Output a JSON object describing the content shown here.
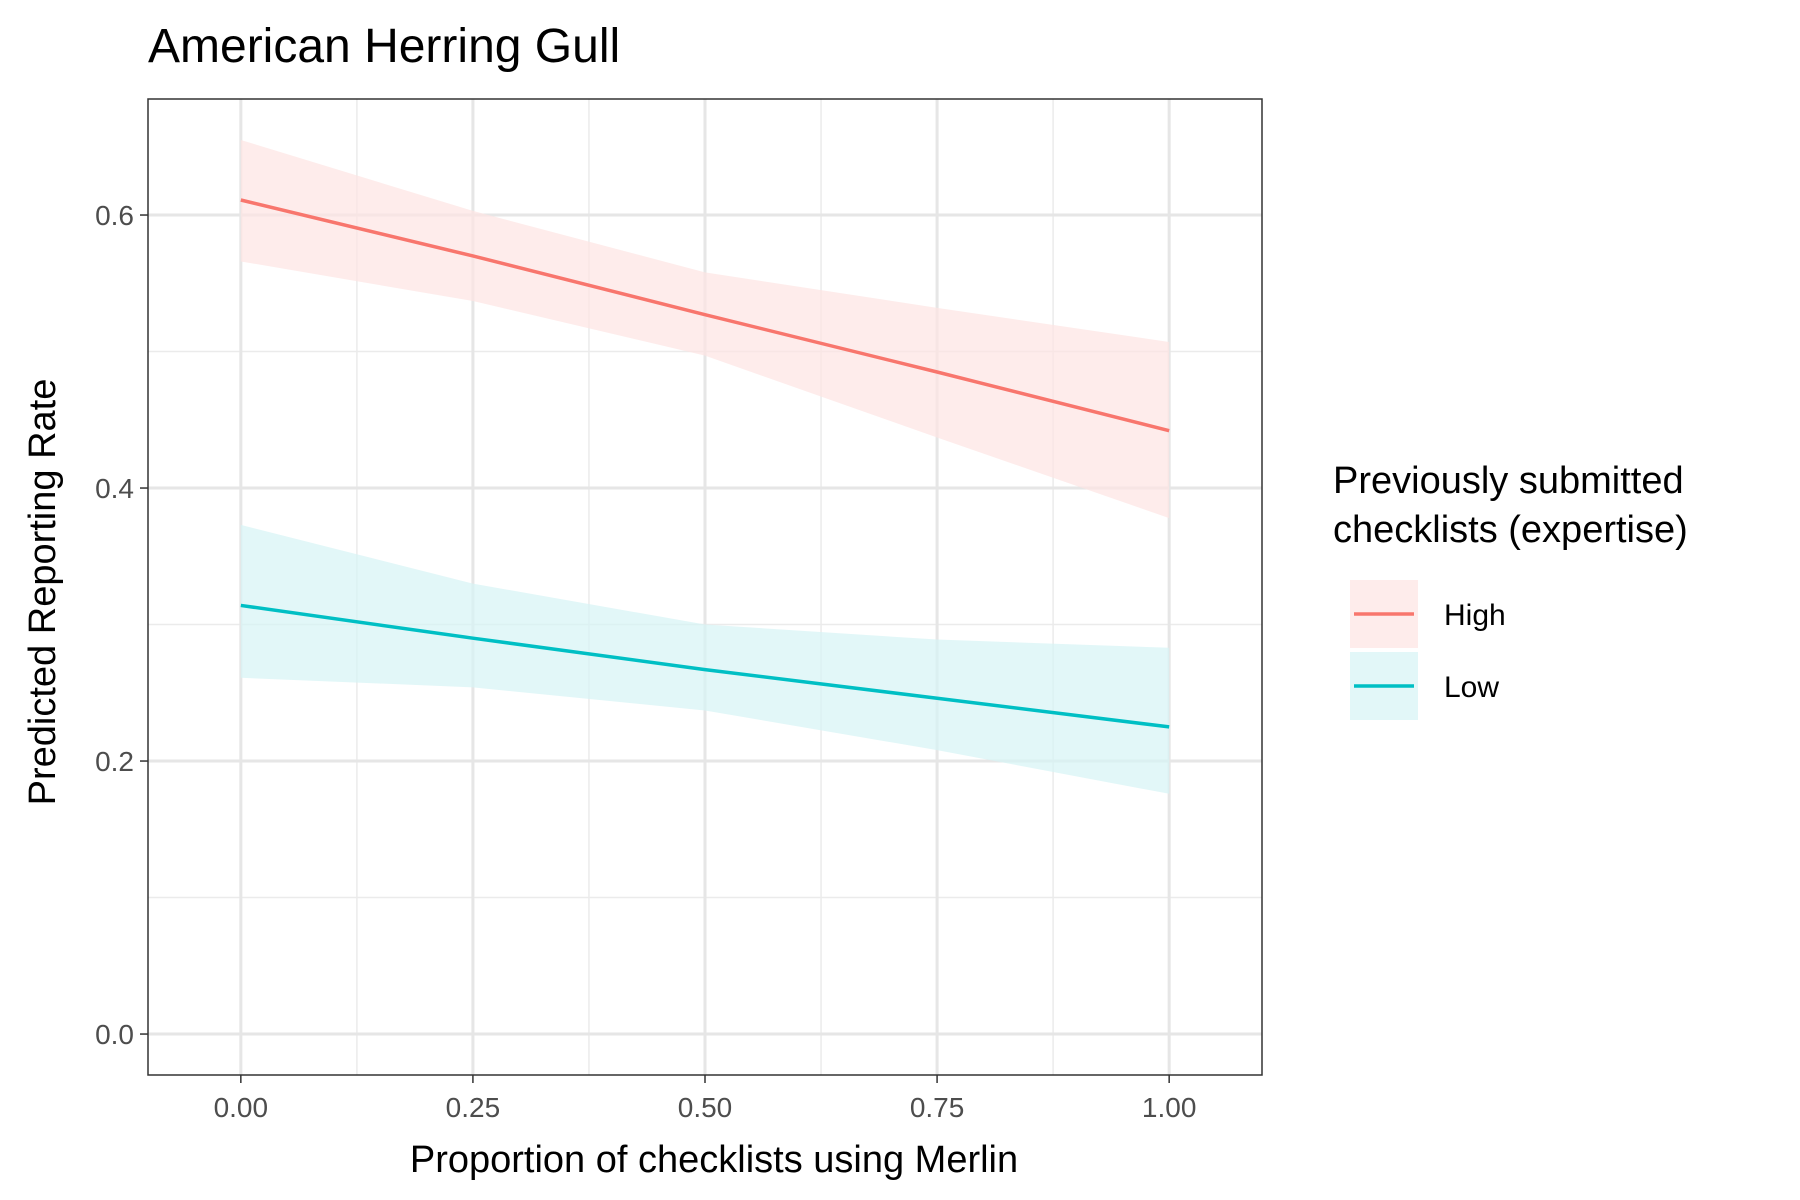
{
  "chart_data": {
    "type": "line",
    "title": "American Herring Gull",
    "xlabel": "Proportion of checklists using Merlin",
    "ylabel": "Predicted Reporting Rate",
    "xlim": [
      -0.1,
      1.1
    ],
    "ylim": [
      -0.03,
      0.685
    ],
    "x_ticks": [
      0.0,
      0.25,
      0.5,
      0.75,
      1.0
    ],
    "x_tick_labels": [
      "0.00",
      "0.25",
      "0.50",
      "0.75",
      "1.00"
    ],
    "x_minor_ticks": [
      0.125,
      0.375,
      0.625,
      0.875
    ],
    "y_ticks": [
      0.0,
      0.2,
      0.4,
      0.6
    ],
    "y_tick_labels": [
      "0.0",
      "0.2",
      "0.4",
      "0.6"
    ],
    "y_minor_ticks": [
      0.1,
      0.3,
      0.5
    ],
    "grid": true,
    "legend": {
      "title_lines": [
        "Previously submitted",
        "checklists (expertise)"
      ],
      "placement": "right"
    },
    "x": [
      0.0,
      0.25,
      0.5,
      0.75,
      1.0
    ],
    "series": [
      {
        "name": "High",
        "color": "#F8766D",
        "band_color": "#FDE4E2",
        "values": [
          0.611,
          0.57,
          0.527,
          0.485,
          0.442
        ],
        "lower": [
          0.566,
          0.537,
          0.497,
          0.437,
          0.378
        ],
        "upper": [
          0.655,
          0.603,
          0.558,
          0.532,
          0.507
        ]
      },
      {
        "name": "Low",
        "color": "#00BFC4",
        "band_color": "#D6F4F5",
        "values": [
          0.314,
          0.29,
          0.267,
          0.246,
          0.225
        ],
        "lower": [
          0.261,
          0.254,
          0.237,
          0.208,
          0.176
        ],
        "upper": [
          0.373,
          0.33,
          0.3,
          0.289,
          0.283
        ]
      }
    ]
  }
}
